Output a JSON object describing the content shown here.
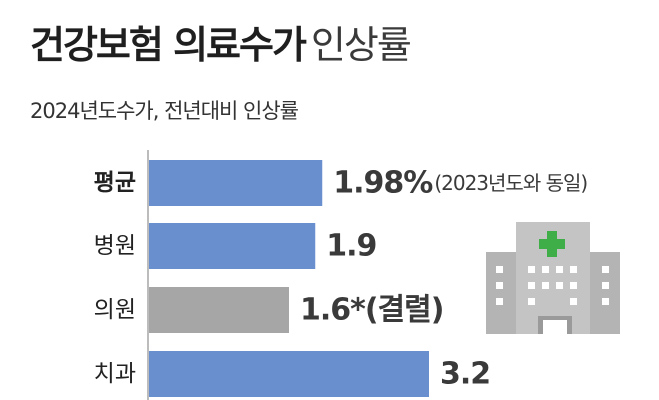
{
  "title_bold": "건강보험 의료수가",
  "title_light": "인상률",
  "subtitle": "2024년도수가, 전년대비 인상률",
  "colors": {
    "bar_blue": "#6a8fcf",
    "bar_gray": "#a6a6a6",
    "building_main": "#c4c4c4",
    "building_side": "#b4b4b4",
    "building_dark": "#9a9a9a",
    "cross": "#3fae49"
  },
  "icons": {
    "building": "hospital-icon"
  },
  "chart_data": {
    "type": "bar",
    "orientation": "horizontal",
    "categories": [
      "평균",
      "병원",
      "의원",
      "치과"
    ],
    "values": [
      1.98,
      1.9,
      1.6,
      3.2
    ],
    "value_labels": [
      "1.98%",
      "1.9",
      "1.6*(결렬)",
      "3.2"
    ],
    "annotations": [
      "(2023년도와 동일)",
      "",
      "",
      ""
    ],
    "bar_colors": [
      "#6a8fcf",
      "#6a8fcf",
      "#a6a6a6",
      "#6a8fcf"
    ],
    "bold_category": "평균",
    "title": "건강보험 의료수가 인상률",
    "subtitle": "2024년도수가, 전년대비 인상률",
    "xlabel": "",
    "ylabel": "",
    "xlim": [
      0,
      3.5
    ],
    "grid": false
  }
}
